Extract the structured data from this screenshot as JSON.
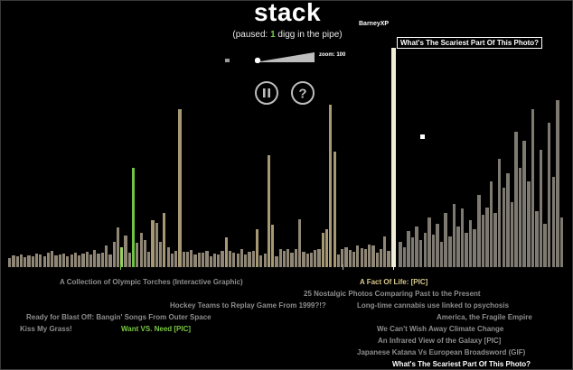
{
  "app": {
    "title": "stack",
    "status_prefix": "(paused: ",
    "status_count": "1",
    "status_suffix": " digg in the pipe)",
    "user": "BarneyXP"
  },
  "zoom": {
    "label": "zoom: 100",
    "level": 100
  },
  "controls": {
    "pause_icon": "pause-icon",
    "help_icon": "question-icon"
  },
  "highlight": {
    "title": "What's The Scariest Part Of This Photo?"
  },
  "colors": {
    "bar_default": "#8f8676",
    "bar_olive": "#a59872",
    "bar_green": "#6cc644",
    "bar_green_light": "#9bcf63",
    "bar_highlight": "#efedd8",
    "bar_right": "#7e7a72",
    "background": "#000000"
  },
  "stories": [
    {
      "text": "A Collection of Olympic Torches (Interactive Graphic)",
      "style": "normal"
    },
    {
      "text": "A Fact Of Life: [PIC]",
      "style": "gold"
    },
    {
      "text": "25 Nostalgic Photos Comparing Past to the Present",
      "style": "normal"
    },
    {
      "text": "Hockey Teams to Replay Game From 1999?!?",
      "style": "normal"
    },
    {
      "text": "Long-time cannabis use linked to psychosis",
      "style": "normal"
    },
    {
      "text": "Ready for Blast Off: Bangin' Songs From Outer Space",
      "style": "normal"
    },
    {
      "text": "America, the Fragile Empire",
      "style": "normal"
    },
    {
      "text": "Kiss My Grass!",
      "style": "normal"
    },
    {
      "text": "Want VS. Need [PIC]",
      "style": "green"
    },
    {
      "text": "We Can't Wish Away Climate Change",
      "style": "normal"
    },
    {
      "text": "An Infrared View of the Galaxy [PIC]",
      "style": "normal"
    },
    {
      "text": "Japanese Katana Vs European Broadsword (GIF)",
      "style": "normal"
    },
    {
      "text": "What's The Scariest Part Of This Photo?",
      "style": "white"
    }
  ]
}
